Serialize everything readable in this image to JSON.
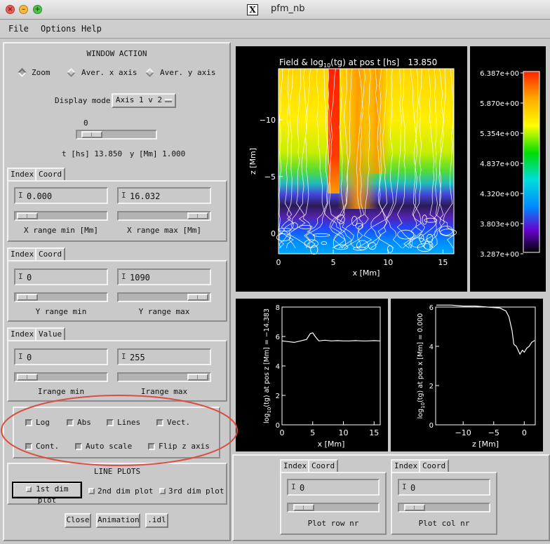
{
  "window": {
    "title": "pfm_nb",
    "x_logo": "X"
  },
  "menubar": {
    "items": [
      "File",
      "Options",
      "Help"
    ]
  },
  "window_action": {
    "heading": "WINDOW ACTION",
    "modes": [
      {
        "label": "Zoom",
        "selected": true
      },
      {
        "label": "Aver. x axis",
        "selected": false
      },
      {
        "label": "Aver. y axis",
        "selected": false
      }
    ]
  },
  "display_mode": {
    "label": "Display mode",
    "value": "Axis 1 v 2"
  },
  "time_slider": {
    "value": "0",
    "position": 0.05
  },
  "status": {
    "t_label": "t [hs]",
    "t_value": "13.850",
    "y_label": "y [Mm]",
    "y_value": "1.000"
  },
  "x_range": {
    "tabs": [
      "Index",
      "Coord"
    ],
    "min_value": "0.000",
    "max_value": "16.032",
    "min_label": "X range min [Mm]",
    "max_label": "X range max [Mm]",
    "min_pos": 0.0,
    "max_pos": 1.0
  },
  "y_range": {
    "tabs": [
      "Index",
      "Coord"
    ],
    "min_value": "0",
    "max_value": "1090",
    "min_label": "Y range min",
    "max_label": "Y range max",
    "min_pos": 0.0,
    "max_pos": 1.0
  },
  "i_range": {
    "tabs": [
      "Index",
      "Value"
    ],
    "min_value": "0",
    "max_value": "255",
    "min_label": "Irange min",
    "max_label": "Irange max",
    "min_pos": 0.0,
    "max_pos": 1.0
  },
  "options": [
    {
      "label": "Log",
      "checked": true
    },
    {
      "label": "Abs",
      "checked": true
    },
    {
      "label": "Lines",
      "checked": true
    },
    {
      "label": "Vect.",
      "checked": true
    },
    {
      "label": "Cont.",
      "checked": true
    },
    {
      "label": "Auto scale",
      "checked": true
    },
    {
      "label": "Flip z axis",
      "checked": true
    }
  ],
  "line_plots": {
    "heading": "LINE PLOTS",
    "buttons": [
      "1st dim plot",
      "2nd dim plot",
      "3rd dim plot"
    ],
    "active": 0
  },
  "bottom_buttons": [
    "Close",
    "Animation",
    ".idl"
  ],
  "main_plot": {
    "title_prefix": "Field & log",
    "title_sub": "10",
    "title_suffix": "(tg) at pos t [hs]",
    "title_value": "13.850",
    "xlabel": "x [Mm]",
    "ylabel": "z [Mm]",
    "xticks": [
      "0",
      "5",
      "10",
      "15"
    ],
    "yticks": [
      "−10",
      "−5",
      "0"
    ]
  },
  "colorbar": {
    "ticks": [
      "6.387e+00",
      "5.870e+00",
      "5.354e+00",
      "4.837e+00",
      "4.320e+00",
      "3.803e+00",
      "3.287e+00"
    ],
    "colors": [
      "#ff2200",
      "#ffaa00",
      "#ffff00",
      "#00dd00",
      "#00dddd",
      "#0088ff",
      "#6600cc",
      "#000000"
    ]
  },
  "plot_left": {
    "ylabel_prefix": "log",
    "ylabel_sub": "10",
    "ylabel_suffix": "(tg) at pos z [Mm] = −14.383",
    "xlabel": "x [Mm]",
    "xticks": [
      "0",
      "5",
      "10",
      "15"
    ],
    "yticks": [
      "8",
      "6",
      "4",
      "2",
      "0"
    ]
  },
  "plot_right": {
    "ylabel_prefix": "log",
    "ylabel_sub": "10",
    "ylabel_suffix": "(tg) at pos x [Mm] = 0.000",
    "xlabel": "z [Mm]",
    "xticks": [
      "−10",
      "−5",
      "0"
    ],
    "yticks": [
      "6",
      "4",
      "2",
      "0"
    ]
  },
  "row_control": {
    "tabs": [
      "Index",
      "Coord"
    ],
    "value": "0",
    "label": "Plot row nr",
    "pos": 0.05
  },
  "col_control": {
    "tabs": [
      "Index",
      "Coord"
    ],
    "value": "0",
    "label": "Plot col nr",
    "pos": 0.05
  },
  "chart_data": [
    {
      "type": "heatmap",
      "title": "Field & log10(tg) at pos t [hs] 13.850",
      "xlabel": "x [Mm]",
      "ylabel": "z [Mm]",
      "xlim": [
        0,
        16
      ],
      "ylim": [
        1.8,
        -14.5
      ],
      "colorbar_range": [
        3.287,
        6.387
      ]
    },
    {
      "type": "line",
      "xlabel": "x [Mm]",
      "ylabel": "log10(tg) at pos z [Mm] = -14.383",
      "xlim": [
        0,
        16
      ],
      "ylim": [
        0,
        8
      ],
      "x": [
        0,
        1,
        2,
        3,
        4,
        4.6,
        5,
        5.4,
        6,
        7,
        8,
        9,
        10,
        11,
        12,
        13,
        14,
        15,
        16
      ],
      "y": [
        5.7,
        5.65,
        5.6,
        5.7,
        5.8,
        6.2,
        6.25,
        6.0,
        5.7,
        5.75,
        5.7,
        5.72,
        5.7,
        5.7,
        5.72,
        5.7,
        5.7,
        5.72,
        5.7
      ]
    },
    {
      "type": "line",
      "xlabel": "z [Mm]",
      "ylabel": "log10(tg) at pos x [Mm] = 0.000",
      "xlim": [
        -14.5,
        1.8
      ],
      "ylim": [
        0,
        6
      ],
      "x": [
        -14.4,
        -12,
        -10,
        -8,
        -6,
        -4,
        -3,
        -2.5,
        -2,
        -1.7,
        -1.3,
        -1,
        -0.7,
        -0.3,
        0,
        0.4,
        0.8,
        1.2,
        1.7
      ],
      "y": [
        6.1,
        6.1,
        6.05,
        6.05,
        6.0,
        5.95,
        5.8,
        5.5,
        4.8,
        4.1,
        4.0,
        3.8,
        3.6,
        3.8,
        3.7,
        3.9,
        4.0,
        4.2,
        4.3
      ]
    }
  ]
}
